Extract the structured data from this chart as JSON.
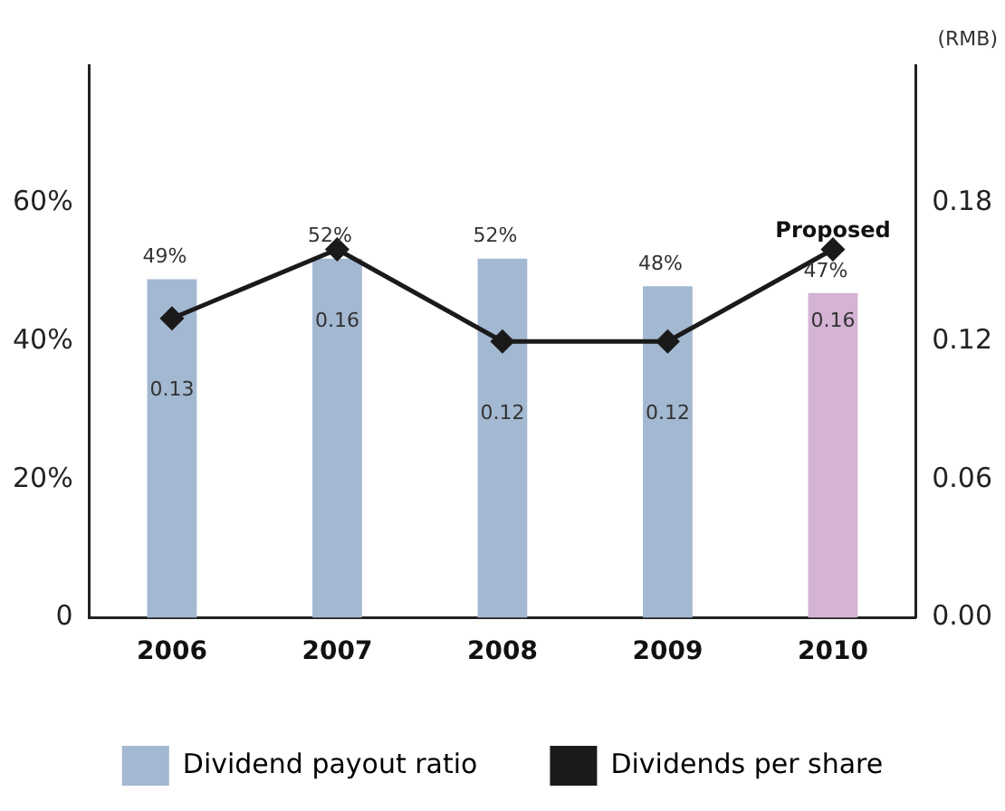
{
  "chart_data": {
    "type": "bar",
    "categories": [
      "2006",
      "2007",
      "2008",
      "2009",
      "2010"
    ],
    "series": [
      {
        "name": "Dividend payout ratio",
        "colors": [
          "#a3b8d1",
          "#a3b8d1",
          "#a3b8d1",
          "#a3b8d1",
          "#d4b3d4"
        ],
        "values": [
          49,
          52,
          52,
          48,
          47
        ],
        "value_labels": [
          "49%",
          "52%",
          "52%",
          "48%",
          "47%"
        ]
      },
      {
        "name": "Dividends per share",
        "type": "line",
        "axis": "y2",
        "color": "#1a1a1a",
        "values": [
          0.13,
          0.16,
          0.12,
          0.12,
          0.16
        ],
        "value_labels": [
          "0.13",
          "0.16",
          "0.12",
          "0.12",
          "0.16"
        ]
      }
    ],
    "ylim": [
      0,
      80
    ],
    "yticks": [
      0,
      {
        "value": 20,
        "label": "20%"
      },
      {
        "value": 40,
        "label": "40%"
      },
      {
        "value": 60,
        "label": "60%"
      }
    ],
    "y2lim": [
      0,
      0.24
    ],
    "y2ticks": [
      {
        "value": 0,
        "label": "0.00"
      },
      {
        "value": 0.06,
        "label": "0.06"
      },
      {
        "value": 0.12,
        "label": "0.12"
      },
      {
        "value": 0.18,
        "label": "0.18"
      }
    ],
    "y2label": "(RMB)",
    "annotations": [
      {
        "text": "Proposed",
        "x": "2010",
        "y": 47
      }
    ],
    "grid": false,
    "legend": "bottom",
    "marker": "diamond",
    "line_style": "solid"
  }
}
